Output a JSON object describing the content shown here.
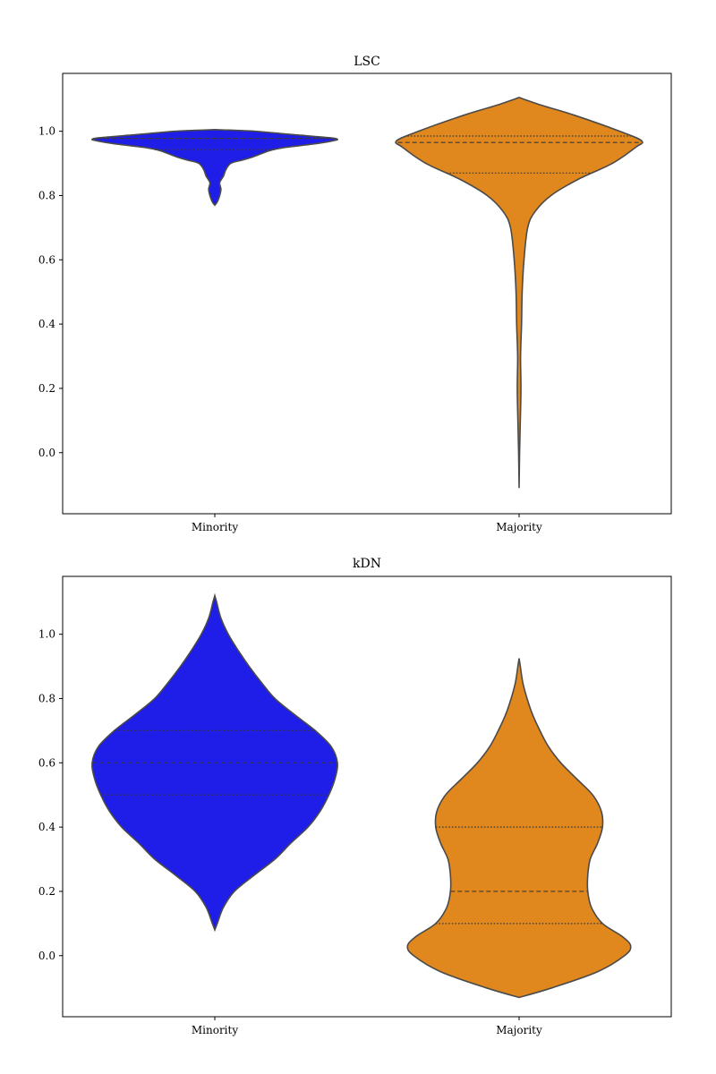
{
  "chart_data": [
    {
      "type": "violin",
      "title": "LSC",
      "xlabel": "",
      "ylabel": "",
      "categories": [
        "Minority",
        "Majority"
      ],
      "ylim": [
        -0.19,
        1.18
      ],
      "yticks": [
        0.0,
        0.2,
        0.4,
        0.6,
        0.8,
        1.0
      ],
      "ytick_labels": [
        "0.0",
        "0.2",
        "0.4",
        "0.6",
        "0.8",
        "1.0"
      ],
      "grid": false,
      "colors": [
        "#1e1ee8",
        "#e0881e"
      ],
      "violins": [
        {
          "category": "Minority",
          "color": "#1e1ee8",
          "ymin": 0.77,
          "ymax": 1.005,
          "density": [
            [
              0.77,
              0.0
            ],
            [
              0.78,
              0.02
            ],
            [
              0.8,
              0.04
            ],
            [
              0.82,
              0.05
            ],
            [
              0.84,
              0.04
            ],
            [
              0.86,
              0.07
            ],
            [
              0.88,
              0.09
            ],
            [
              0.9,
              0.13
            ],
            [
              0.91,
              0.22
            ],
            [
              0.92,
              0.31
            ],
            [
              0.94,
              0.45
            ],
            [
              0.95,
              0.58
            ],
            [
              0.96,
              0.8
            ],
            [
              0.97,
              0.96
            ],
            [
              0.975,
              1.0
            ],
            [
              0.98,
              0.93
            ],
            [
              0.99,
              0.62
            ],
            [
              1.0,
              0.33
            ],
            [
              1.005,
              0.0
            ]
          ],
          "quartiles": [
            0.943,
            0.978,
            0.978
          ]
        },
        {
          "category": "Majority",
          "color": "#e0881e",
          "ymin": -0.11,
          "ymax": 1.105,
          "density": [
            [
              -0.11,
              0.0
            ],
            [
              0.0,
              0.004
            ],
            [
              0.1,
              0.01
            ],
            [
              0.2,
              0.015
            ],
            [
              0.3,
              0.012
            ],
            [
              0.4,
              0.02
            ],
            [
              0.5,
              0.025
            ],
            [
              0.6,
              0.04
            ],
            [
              0.7,
              0.07
            ],
            [
              0.75,
              0.13
            ],
            [
              0.8,
              0.26
            ],
            [
              0.85,
              0.48
            ],
            [
              0.9,
              0.76
            ],
            [
              0.95,
              0.95
            ],
            [
              0.97,
              1.0
            ],
            [
              1.0,
              0.82
            ],
            [
              1.05,
              0.45
            ],
            [
              1.08,
              0.19
            ],
            [
              1.105,
              0.0
            ]
          ],
          "quartiles": [
            0.87,
            0.965,
            0.985
          ]
        }
      ]
    },
    {
      "type": "violin",
      "title": "kDN",
      "xlabel": "",
      "ylabel": "",
      "categories": [
        "Minority",
        "Majority"
      ],
      "ylim": [
        -0.19,
        1.18
      ],
      "yticks": [
        0.0,
        0.2,
        0.4,
        0.6,
        0.8,
        1.0
      ],
      "ytick_labels": [
        "0.0",
        "0.2",
        "0.4",
        "0.6",
        "0.8",
        "1.0"
      ],
      "grid": false,
      "colors": [
        "#1e1ee8",
        "#e0881e"
      ],
      "violins": [
        {
          "category": "Minority",
          "color": "#1e1ee8",
          "ymin": 0.08,
          "ymax": 1.12,
          "density": [
            [
              0.08,
              0.0
            ],
            [
              0.1,
              0.02
            ],
            [
              0.15,
              0.07
            ],
            [
              0.2,
              0.16
            ],
            [
              0.25,
              0.32
            ],
            [
              0.3,
              0.49
            ],
            [
              0.35,
              0.62
            ],
            [
              0.4,
              0.76
            ],
            [
              0.45,
              0.86
            ],
            [
              0.5,
              0.93
            ],
            [
              0.55,
              0.98
            ],
            [
              0.6,
              1.0
            ],
            [
              0.65,
              0.95
            ],
            [
              0.7,
              0.82
            ],
            [
              0.75,
              0.65
            ],
            [
              0.8,
              0.49
            ],
            [
              0.85,
              0.38
            ],
            [
              0.9,
              0.28
            ],
            [
              0.95,
              0.19
            ],
            [
              1.0,
              0.11
            ],
            [
              1.05,
              0.05
            ],
            [
              1.1,
              0.015
            ],
            [
              1.12,
              0.0
            ]
          ],
          "quartiles": [
            0.5,
            0.6,
            0.7
          ]
        },
        {
          "category": "Majority",
          "color": "#e0881e",
          "ymin": -0.13,
          "ymax": 0.925,
          "density": [
            [
              -0.13,
              0.0
            ],
            [
              -0.1,
              0.27
            ],
            [
              -0.05,
              0.64
            ],
            [
              0.0,
              0.86
            ],
            [
              0.03,
              0.91
            ],
            [
              0.06,
              0.84
            ],
            [
              0.1,
              0.68
            ],
            [
              0.15,
              0.59
            ],
            [
              0.2,
              0.56
            ],
            [
              0.25,
              0.56
            ],
            [
              0.3,
              0.58
            ],
            [
              0.35,
              0.64
            ],
            [
              0.4,
              0.68
            ],
            [
              0.45,
              0.67
            ],
            [
              0.5,
              0.6
            ],
            [
              0.55,
              0.47
            ],
            [
              0.6,
              0.34
            ],
            [
              0.65,
              0.24
            ],
            [
              0.7,
              0.17
            ],
            [
              0.75,
              0.11
            ],
            [
              0.8,
              0.065
            ],
            [
              0.85,
              0.03
            ],
            [
              0.9,
              0.01
            ],
            [
              0.925,
              0.0
            ]
          ],
          "quartiles": [
            0.1,
            0.2,
            0.4
          ]
        }
      ]
    }
  ]
}
